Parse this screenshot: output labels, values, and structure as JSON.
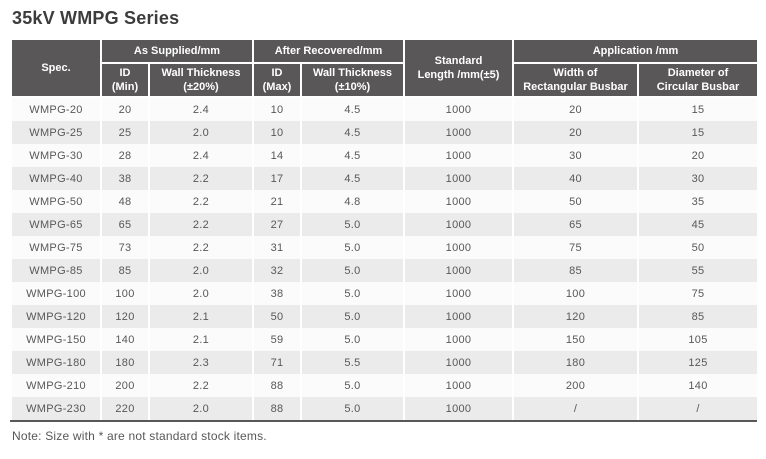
{
  "page": {
    "title": "35kV WMPG Series",
    "note": "Note: Size with * are not standard stock items."
  },
  "colors": {
    "header_bg": "#595757",
    "header_text": "#ffffff",
    "body_text": "#595757",
    "row_light": "#fbfbfb",
    "row_dark": "#ebebeb",
    "bottom_rule": "#595757"
  },
  "table": {
    "col_keys": [
      "spec",
      "id_min",
      "wall_thickness_20",
      "id_max",
      "wall_thickness_10",
      "standard_length",
      "width_rect",
      "dia_circ"
    ],
    "header": {
      "spec": "Spec.",
      "as_supplied": "As Supplied/mm",
      "after_recovered": "After Recovered/mm",
      "standard_length": "Standard\nLength /mm(±5)",
      "application": "Application /mm",
      "id_min": "ID\n(Min)",
      "wall_thickness_20": "Wall Thickness\n(±20%)",
      "id_max": "ID\n(Max)",
      "wall_thickness_10": "Wall Thickness\n(±10%)",
      "width_rect": "Width of\nRectangular Busbar",
      "dia_circ": "Diameter of\nCircular Busbar"
    },
    "rows": [
      [
        "WMPG-20",
        "20",
        "2.4",
        "10",
        "4.5",
        "1000",
        "20",
        "15"
      ],
      [
        "WMPG-25",
        "25",
        "2.0",
        "10",
        "4.5",
        "1000",
        "20",
        "15"
      ],
      [
        "WMPG-30",
        "28",
        "2.4",
        "14",
        "4.5",
        "1000",
        "30",
        "20"
      ],
      [
        "WMPG-40",
        "38",
        "2.2",
        "17",
        "4.5",
        "1000",
        "40",
        "30"
      ],
      [
        "WMPG-50",
        "48",
        "2.2",
        "21",
        "4.8",
        "1000",
        "50",
        "35"
      ],
      [
        "WMPG-65",
        "65",
        "2.2",
        "27",
        "5.0",
        "1000",
        "65",
        "45"
      ],
      [
        "WMPG-75",
        "73",
        "2.2",
        "31",
        "5.0",
        "1000",
        "75",
        "50"
      ],
      [
        "WMPG-85",
        "85",
        "2.0",
        "32",
        "5.0",
        "1000",
        "85",
        "55"
      ],
      [
        "WMPG-100",
        "100",
        "2.0",
        "38",
        "5.0",
        "1000",
        "100",
        "75"
      ],
      [
        "WMPG-120",
        "120",
        "2.1",
        "50",
        "5.0",
        "1000",
        "120",
        "85"
      ],
      [
        "WMPG-150",
        "140",
        "2.1",
        "59",
        "5.0",
        "1000",
        "150",
        "105"
      ],
      [
        "WMPG-180",
        "180",
        "2.3",
        "71",
        "5.5",
        "1000",
        "180",
        "125"
      ],
      [
        "WMPG-210",
        "200",
        "2.2",
        "88",
        "5.0",
        "1000",
        "200",
        "140"
      ],
      [
        "WMPG-230",
        "220",
        "2.0",
        "88",
        "5.0",
        "1000",
        "/",
        "/"
      ]
    ]
  }
}
